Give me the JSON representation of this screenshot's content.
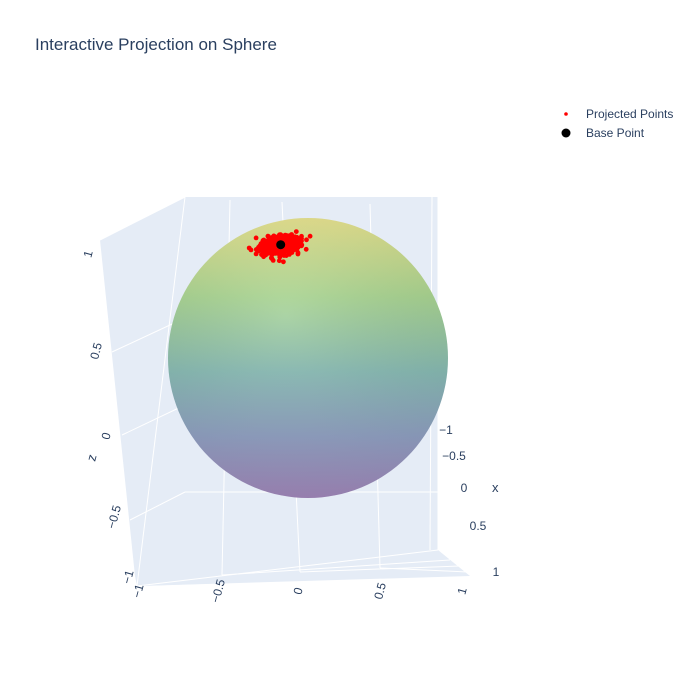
{
  "chart_data": {
    "type": "scatter",
    "projection": "3d",
    "title": "Interactive Projection on Sphere",
    "surface": {
      "name": "sphere",
      "radius": 1,
      "colorscale": "viridis",
      "opacity": 0.5
    },
    "axes": {
      "x": {
        "title": "x",
        "range": [
          -1,
          1
        ],
        "ticks": [
          "−1",
          "−0.5",
          "0",
          "0.5",
          "1"
        ]
      },
      "y": {
        "title": "",
        "range": [
          -1,
          1
        ],
        "ticks": [
          "−1",
          "−0.5",
          "0",
          "0.5",
          "1"
        ]
      },
      "z": {
        "title": "z",
        "range": [
          -1,
          1
        ],
        "ticks": [
          "−1",
          "−0.5",
          "0",
          "0.5",
          "1"
        ]
      }
    },
    "series": [
      {
        "name": "Projected Points",
        "color": "#ff0000",
        "marker": "dot",
        "count": 500,
        "center": [
          -0.35,
          0.35,
          0.87
        ],
        "spread": 0.12
      },
      {
        "name": "Base Point",
        "color": "#000000",
        "marker": "circle",
        "point": [
          -0.35,
          0.35,
          0.87
        ]
      }
    ],
    "legend": {
      "position": "top-right"
    },
    "grid": true
  }
}
